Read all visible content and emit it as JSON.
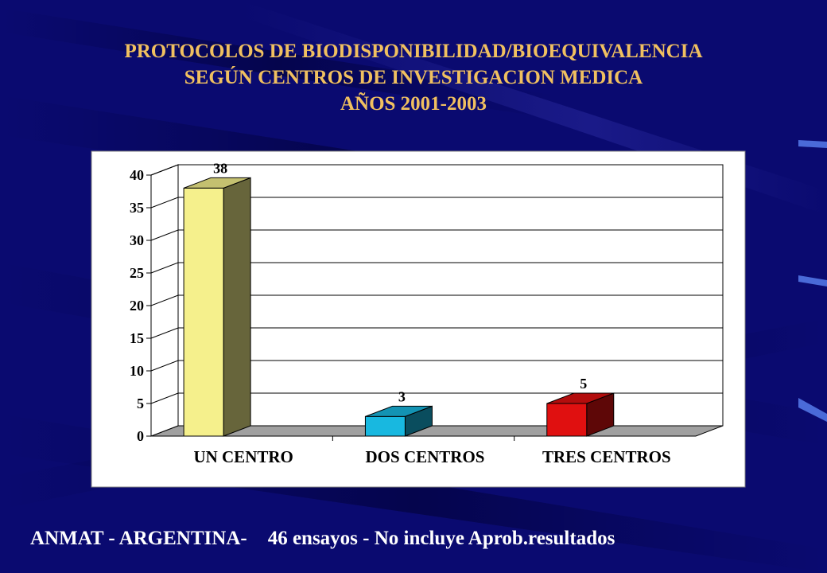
{
  "slide": {
    "title_lines": [
      "PROTOCOLOS DE BIODISPONIBILIDAD/BIOEQUIVALENCIA",
      "SEGÚN CENTROS DE INVESTIGACION  MEDICA",
      "AÑOS 2001-2003"
    ],
    "footer_left": "ANMAT - ARGENTINA-",
    "footer_right": "46 ensayos - No incluye Aprob.resultados"
  },
  "colors": {
    "background": "#0a0a70",
    "title": "#f0c060",
    "footer": "#ffffff",
    "plot_area": "#ffffff"
  },
  "chart_data": {
    "type": "bar",
    "categories": [
      "UN CENTRO",
      "DOS CENTROS",
      "TRES CENTROS"
    ],
    "values": [
      38,
      3,
      5
    ],
    "data_labels": [
      "38",
      "3",
      "5"
    ],
    "bar_colors": [
      "#f5f08c",
      "#18b8e0",
      "#e01010"
    ],
    "ylim": [
      0,
      40
    ],
    "yticks": [
      0,
      5,
      10,
      15,
      20,
      25,
      30,
      35,
      40
    ],
    "grid": true,
    "legend": "none",
    "style": "3d-columns"
  }
}
